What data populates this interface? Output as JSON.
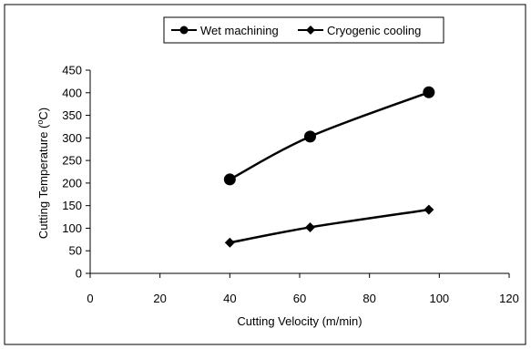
{
  "chart_data": {
    "type": "line",
    "title": "",
    "xlabel": "Cutting Velocity (m/min)",
    "ylabel": "Cutting Temperature (",
    "ylabel_unit_sup": "o",
    "ylabel_unit_tail": "C)",
    "xlim": [
      0,
      120
    ],
    "ylim": [
      0,
      450
    ],
    "xticks": [
      0,
      20,
      40,
      60,
      80,
      100,
      120
    ],
    "yticks": [
      0,
      50,
      100,
      150,
      200,
      250,
      300,
      350,
      400,
      450
    ],
    "grid": false,
    "legend_position": "top",
    "series": [
      {
        "name": "Wet machining",
        "marker": "circle",
        "color": "#000000",
        "points": [
          {
            "x": 40,
            "y": 208
          },
          {
            "x": 63,
            "y": 303
          },
          {
            "x": 97,
            "y": 401
          }
        ]
      },
      {
        "name": "Cryogenic cooling",
        "marker": "diamond",
        "color": "#000000",
        "points": [
          {
            "x": 40,
            "y": 68
          },
          {
            "x": 63,
            "y": 102
          },
          {
            "x": 97,
            "y": 141
          }
        ]
      }
    ]
  }
}
